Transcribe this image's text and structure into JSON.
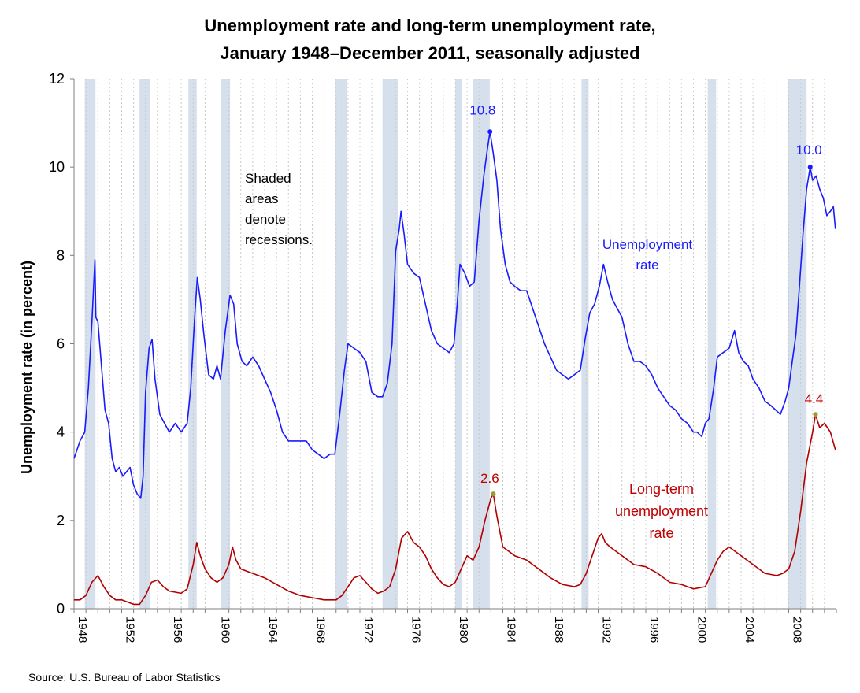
{
  "chart_data": {
    "type": "line",
    "title": "Unemployment rate and long-term unemployment rate,",
    "subtitle": "January 1948–December 2011, seasonally adjusted",
    "ylabel": "Unemployment rate (in percent)",
    "xlabel": "",
    "ylim": [
      0,
      12
    ],
    "xlim": [
      1948.0,
      2012.0
    ],
    "grid": "vertical-dotted",
    "y_ticks": [
      "0",
      "2",
      "4",
      "6",
      "8",
      "10",
      "12"
    ],
    "x_ticks": [
      "1948",
      "1952",
      "1956",
      "1960",
      "1964",
      "1968",
      "1972",
      "1976",
      "1980",
      "1984",
      "1988",
      "1992",
      "1996",
      "2000",
      "2004",
      "2008"
    ],
    "recessions": [
      [
        1948.9,
        1949.8
      ],
      [
        1953.5,
        1954.4
      ],
      [
        1957.6,
        1958.3
      ],
      [
        1960.3,
        1961.1
      ],
      [
        1969.9,
        1970.9
      ],
      [
        1973.9,
        1975.2
      ],
      [
        1980.0,
        1980.6
      ],
      [
        1981.5,
        1982.9
      ],
      [
        1990.6,
        1991.2
      ],
      [
        2001.2,
        2001.9
      ],
      [
        2007.9,
        2009.5
      ]
    ],
    "series": [
      {
        "name": "Unemployment rate",
        "color": "#1a1aff",
        "x": [
          1948.0,
          1948.5,
          1948.9,
          1949.2,
          1949.5,
          1949.75,
          1949.83,
          1950.0,
          1950.3,
          1950.6,
          1950.9,
          1951.2,
          1951.5,
          1951.8,
          1952.1,
          1952.4,
          1952.7,
          1953.0,
          1953.3,
          1953.6,
          1953.8,
          1954.0,
          1954.3,
          1954.55,
          1954.8,
          1955.2,
          1955.6,
          1956.0,
          1956.5,
          1957.0,
          1957.5,
          1957.8,
          1958.1,
          1958.35,
          1958.6,
          1958.9,
          1959.3,
          1959.7,
          1960.0,
          1960.3,
          1960.7,
          1961.1,
          1961.4,
          1961.7,
          1962.1,
          1962.5,
          1963.0,
          1963.5,
          1964.0,
          1964.5,
          1965.0,
          1965.5,
          1966.0,
          1966.5,
          1967.0,
          1967.5,
          1968.0,
          1968.5,
          1969.0,
          1969.5,
          1969.9,
          1970.3,
          1970.7,
          1971.0,
          1971.5,
          1972.0,
          1972.5,
          1973.0,
          1973.5,
          1973.9,
          1974.3,
          1974.7,
          1975.0,
          1975.3,
          1975.45,
          1975.7,
          1976.0,
          1976.5,
          1977.0,
          1977.5,
          1978.0,
          1978.5,
          1979.0,
          1979.5,
          1979.9,
          1980.2,
          1980.4,
          1980.8,
          1981.2,
          1981.6,
          1982.0,
          1982.4,
          1982.7,
          1982.92,
          1983.2,
          1983.5,
          1983.8,
          1984.2,
          1984.6,
          1985.0,
          1985.5,
          1986.0,
          1986.5,
          1987.0,
          1987.5,
          1988.0,
          1988.5,
          1989.0,
          1989.5,
          1990.0,
          1990.5,
          1990.9,
          1991.3,
          1991.7,
          1992.1,
          1992.45,
          1992.8,
          1993.2,
          1993.6,
          1994.0,
          1994.5,
          1995.0,
          1995.5,
          1996.0,
          1996.5,
          1997.0,
          1997.5,
          1998.0,
          1998.5,
          1999.0,
          1999.5,
          2000.0,
          2000.3,
          2000.7,
          2001.0,
          2001.3,
          2001.7,
          2002.0,
          2002.5,
          2003.0,
          2003.45,
          2003.8,
          2004.2,
          2004.6,
          2005.0,
          2005.5,
          2006.0,
          2006.5,
          2006.9,
          2007.3,
          2007.7,
          2008.0,
          2008.3,
          2008.6,
          2008.9,
          2009.2,
          2009.5,
          2009.8,
          2010.0,
          2010.3,
          2010.6,
          2010.9,
          2011.2,
          2011.5,
          2011.75,
          2011.92
        ],
        "values": [
          3.4,
          3.8,
          4.0,
          5.0,
          6.5,
          7.9,
          6.6,
          6.5,
          5.5,
          4.5,
          4.2,
          3.4,
          3.1,
          3.2,
          3.0,
          3.1,
          3.2,
          2.8,
          2.6,
          2.5,
          3.0,
          4.9,
          5.9,
          6.1,
          5.2,
          4.4,
          4.2,
          4.0,
          4.2,
          4.0,
          4.2,
          5.0,
          6.5,
          7.5,
          7.0,
          6.2,
          5.3,
          5.2,
          5.5,
          5.2,
          6.3,
          7.1,
          6.9,
          6.0,
          5.6,
          5.5,
          5.7,
          5.5,
          5.2,
          4.9,
          4.5,
          4.0,
          3.8,
          3.8,
          3.8,
          3.8,
          3.6,
          3.5,
          3.4,
          3.5,
          3.5,
          4.4,
          5.4,
          6.0,
          5.9,
          5.8,
          5.6,
          4.9,
          4.8,
          4.8,
          5.1,
          6.0,
          8.1,
          8.6,
          9.0,
          8.5,
          7.8,
          7.6,
          7.5,
          6.9,
          6.3,
          6.0,
          5.9,
          5.8,
          6.0,
          7.0,
          7.8,
          7.6,
          7.3,
          7.4,
          8.8,
          9.8,
          10.4,
          10.8,
          10.3,
          9.7,
          8.6,
          7.8,
          7.4,
          7.3,
          7.2,
          7.2,
          6.8,
          6.4,
          6.0,
          5.7,
          5.4,
          5.3,
          5.2,
          5.3,
          5.4,
          6.1,
          6.7,
          6.9,
          7.3,
          7.8,
          7.4,
          7.0,
          6.8,
          6.6,
          6.0,
          5.6,
          5.6,
          5.5,
          5.3,
          5.0,
          4.8,
          4.6,
          4.5,
          4.3,
          4.2,
          4.0,
          4.0,
          3.9,
          4.2,
          4.3,
          5.0,
          5.7,
          5.8,
          5.9,
          6.3,
          5.8,
          5.6,
          5.5,
          5.2,
          5.0,
          4.7,
          4.6,
          4.5,
          4.4,
          4.7,
          5.0,
          5.6,
          6.2,
          7.3,
          8.5,
          9.5,
          10.0,
          9.7,
          9.8,
          9.5,
          9.3,
          8.9,
          9.0,
          9.1,
          8.6
        ]
      },
      {
        "name": "Long-term unemployment rate",
        "color": "#b20000",
        "x": [
          1948.0,
          1948.5,
          1949.0,
          1949.5,
          1950.0,
          1950.5,
          1951.0,
          1951.5,
          1952.0,
          1952.5,
          1953.0,
          1953.5,
          1954.0,
          1954.5,
          1955.0,
          1955.5,
          1956.0,
          1957.0,
          1957.5,
          1958.0,
          1958.3,
          1958.6,
          1959.0,
          1959.5,
          1960.0,
          1960.5,
          1961.0,
          1961.3,
          1961.6,
          1962.0,
          1963.0,
          1964.0,
          1965.0,
          1966.0,
          1967.0,
          1968.0,
          1969.0,
          1970.0,
          1970.5,
          1971.0,
          1971.5,
          1972.0,
          1972.5,
          1973.0,
          1973.5,
          1974.0,
          1974.5,
          1975.0,
          1975.5,
          1976.0,
          1976.5,
          1977.0,
          1977.5,
          1978.0,
          1978.5,
          1979.0,
          1979.5,
          1980.0,
          1980.5,
          1981.0,
          1981.5,
          1982.0,
          1982.5,
          1983.0,
          1983.2,
          1983.5,
          1984.0,
          1985.0,
          1986.0,
          1987.0,
          1988.0,
          1989.0,
          1990.0,
          1990.5,
          1991.0,
          1991.5,
          1992.0,
          1992.3,
          1992.6,
          1993.0,
          1994.0,
          1995.0,
          1996.0,
          1997.0,
          1998.0,
          1999.0,
          2000.0,
          2001.0,
          2001.5,
          2002.0,
          2002.5,
          2003.0,
          2003.5,
          2004.0,
          2005.0,
          2006.0,
          2007.0,
          2007.5,
          2008.0,
          2008.5,
          2009.0,
          2009.5,
          2010.0,
          2010.25,
          2010.6,
          2011.0,
          2011.5,
          2011.92
        ],
        "values": [
          0.2,
          0.2,
          0.3,
          0.6,
          0.75,
          0.5,
          0.3,
          0.2,
          0.2,
          0.15,
          0.1,
          0.1,
          0.3,
          0.6,
          0.65,
          0.5,
          0.4,
          0.35,
          0.45,
          1.0,
          1.5,
          1.2,
          0.9,
          0.7,
          0.6,
          0.7,
          1.0,
          1.4,
          1.1,
          0.9,
          0.8,
          0.7,
          0.55,
          0.4,
          0.3,
          0.25,
          0.2,
          0.2,
          0.3,
          0.5,
          0.7,
          0.75,
          0.6,
          0.45,
          0.35,
          0.4,
          0.5,
          0.9,
          1.6,
          1.75,
          1.5,
          1.4,
          1.2,
          0.9,
          0.7,
          0.55,
          0.5,
          0.6,
          0.9,
          1.2,
          1.1,
          1.4,
          2.0,
          2.5,
          2.6,
          2.1,
          1.4,
          1.2,
          1.1,
          0.9,
          0.7,
          0.55,
          0.5,
          0.55,
          0.8,
          1.2,
          1.6,
          1.7,
          1.5,
          1.4,
          1.2,
          1.0,
          0.95,
          0.8,
          0.6,
          0.55,
          0.45,
          0.5,
          0.8,
          1.1,
          1.3,
          1.4,
          1.3,
          1.2,
          1.0,
          0.8,
          0.75,
          0.8,
          0.9,
          1.3,
          2.2,
          3.3,
          4.0,
          4.4,
          4.1,
          4.2,
          4.0,
          3.6
        ]
      }
    ],
    "annotations": {
      "shaded_note": [
        "Shaded",
        "areas",
        "denote",
        "recessions."
      ],
      "unemp_label": [
        "Unemployment",
        "rate"
      ],
      "lt_label": [
        "Long-term",
        "unemployment",
        "rate"
      ],
      "peak_unemp_1982": "10.8",
      "peak_unemp_2009": "10.0",
      "peak_lt_1983": "2.6",
      "peak_lt_2010": "4.4"
    },
    "recession_color": "#d6e0ec",
    "text_color_red": "#c00000",
    "text_color_blue": "#1a1aff"
  },
  "source": "Source: U.S. Bureau of Labor Statistics"
}
